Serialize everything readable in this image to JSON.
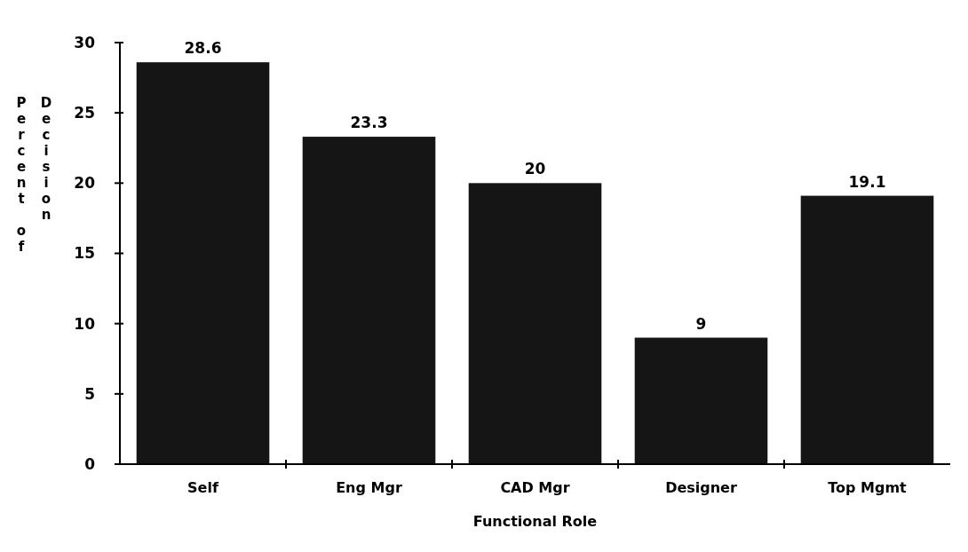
{
  "chart_data": {
    "type": "bar",
    "xlabel": "Functional Role",
    "ylabel": "Percent of Decision",
    "categories": [
      "Self",
      "Eng Mgr",
      "CAD Mgr",
      "Designer",
      "Top Mgmt"
    ],
    "values": [
      28.6,
      23.3,
      20,
      9,
      19.1
    ],
    "color": "#151515",
    "ylim": [
      0,
      30
    ],
    "yticks": [
      0,
      5,
      10,
      15,
      20,
      25,
      30
    ],
    "data_labels": true
  }
}
